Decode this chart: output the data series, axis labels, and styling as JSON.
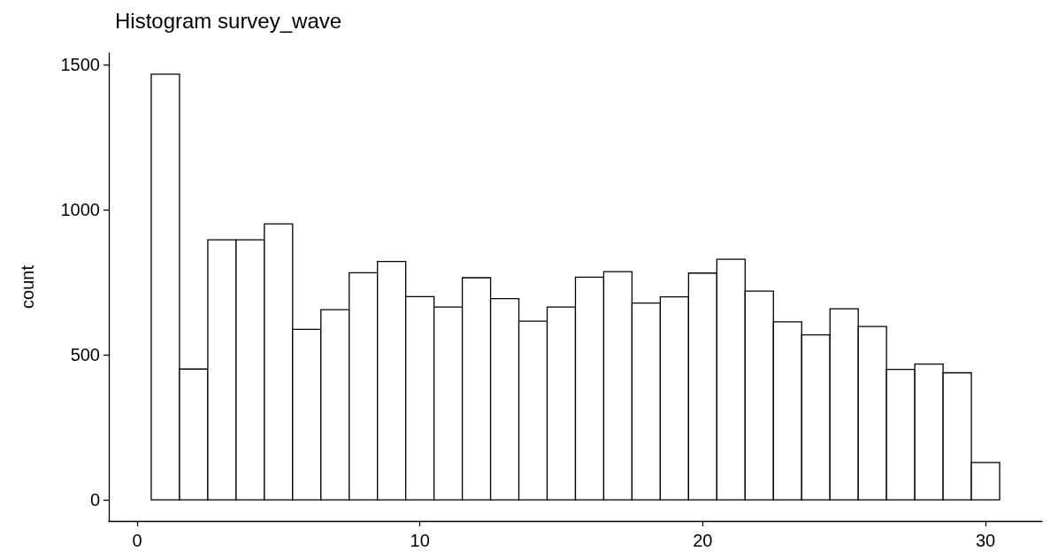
{
  "chart_data": {
    "type": "histogram",
    "title": "Histogram survey_wave",
    "ylabel": "count",
    "bins": [
      0.5,
      1.5,
      2.5,
      3.5,
      4.5,
      5.5,
      6.5,
      7.5,
      8.5,
      9.5,
      10.5,
      11.5,
      12.5,
      13.5,
      14.5,
      15.5,
      16.5,
      17.5,
      18.5,
      19.5,
      20.5,
      21.5,
      22.5,
      23.5,
      24.5,
      25.5,
      26.5,
      27.5,
      28.5,
      29.5,
      30.5
    ],
    "values": [
      1468,
      451,
      897,
      897,
      952,
      588,
      656,
      783,
      822,
      701,
      665,
      766,
      694,
      616,
      665,
      768,
      787,
      679,
      700,
      782,
      830,
      720,
      614,
      569,
      659,
      598,
      450,
      468,
      438,
      129
    ],
    "color": "#ffffff",
    "xlim": [
      -1,
      32
    ],
    "xticks": [
      0,
      10,
      20,
      30
    ],
    "ylim": [
      -73,
      1541
    ],
    "yticks": [
      0,
      500,
      1000,
      1500
    ],
    "grid": false
  }
}
